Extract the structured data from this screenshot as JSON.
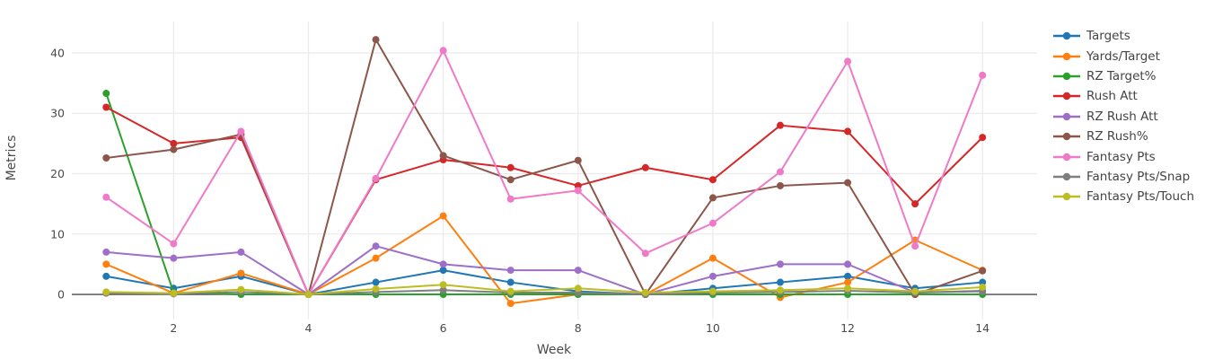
{
  "chart_data": {
    "type": "line",
    "title": "",
    "xlabel": "Week",
    "ylabel": "Metrics",
    "x": [
      1,
      2,
      3,
      4,
      5,
      6,
      7,
      8,
      9,
      10,
      11,
      12,
      13,
      14
    ],
    "x_ticks": [
      2,
      4,
      6,
      8,
      10,
      12,
      14
    ],
    "y_ticks": [
      0,
      10,
      20,
      30,
      40
    ],
    "xlim": [
      0.49,
      14.81
    ],
    "ylim": [
      -2.6,
      45.2
    ],
    "grid": true,
    "legend_position": "right",
    "series": [
      {
        "name": "Targets",
        "color": "#1f77b4",
        "values": [
          3,
          1,
          3,
          0,
          2,
          4,
          2,
          0.5,
          0,
          1,
          2,
          3,
          1,
          2
        ]
      },
      {
        "name": "Yards/Target",
        "color": "#ff7f0e",
        "values": [
          5,
          0.2,
          3.5,
          0,
          6,
          13,
          -1.5,
          0,
          0,
          6,
          -0.5,
          2,
          9,
          4
        ]
      },
      {
        "name": "RZ Target%",
        "color": "#2ca02c",
        "values": [
          33.3,
          0.3,
          0,
          0,
          0,
          0,
          0,
          0,
          0,
          0,
          0,
          0,
          0,
          0
        ]
      },
      {
        "name": "Rush Att",
        "color": "#d62728",
        "values": [
          31,
          25,
          26,
          0,
          19,
          22.3,
          21,
          18,
          21,
          19,
          28,
          27,
          15,
          26
        ]
      },
      {
        "name": "RZ Rush Att",
        "color": "#9d6fc8",
        "values": [
          7,
          6,
          7,
          0,
          8,
          5,
          4,
          4,
          0,
          3,
          5,
          5,
          0.3,
          0.5
        ]
      },
      {
        "name": "RZ Rush%",
        "color": "#8c564b",
        "values": [
          22.6,
          24,
          26.5,
          0,
          42.2,
          23,
          19,
          22.2,
          0,
          16,
          18,
          18.5,
          0,
          3.9
        ]
      },
      {
        "name": "Fantasy Pts",
        "color": "#ee7ac8",
        "values": [
          16.1,
          8.4,
          27,
          0,
          19.2,
          40.4,
          15.8,
          17.2,
          6.8,
          11.8,
          20.3,
          38.6,
          8,
          36.3
        ]
      },
      {
        "name": "Fantasy Pts/Snap",
        "color": "#7f7f7f",
        "values": [
          0.2,
          0.1,
          0.4,
          0,
          0.4,
          0.7,
          0.3,
          0.3,
          0,
          0.3,
          0.4,
          0.6,
          0.3,
          0.6
        ]
      },
      {
        "name": "Fantasy Pts/Touch",
        "color": "#bcbd22",
        "values": [
          0.4,
          0.2,
          0.8,
          0,
          0.9,
          1.6,
          0.5,
          1.0,
          0.3,
          0.5,
          0.7,
          1.0,
          0.5,
          1.2
        ]
      }
    ]
  },
  "colors": {
    "background": "#ffffff",
    "gridline": "#ebebeb",
    "zero_line": "#4a4a4a",
    "text": "#4a4a4a"
  }
}
